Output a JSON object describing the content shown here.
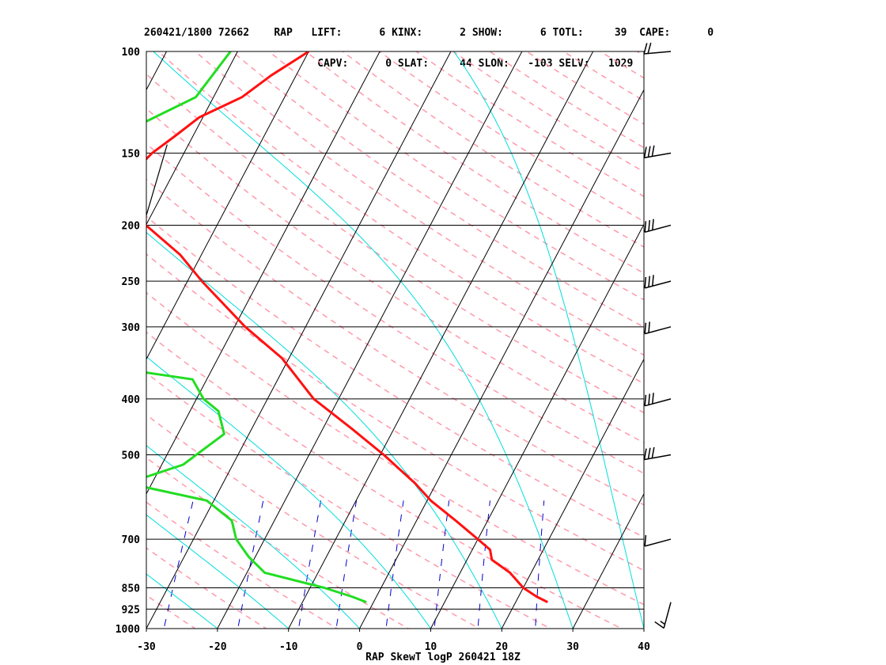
{
  "header": {
    "line1": "260421/1800 72662    RAP   LIFT:      6 KINX:      2 SHOW:      6 TOTL:     39  CAPE:      0",
    "line2": "                            CAPV:      0 SLAT:     44 SLON:   -103 SELV:   1029"
  },
  "chart_data": {
    "type": "line",
    "chart_kind": "skew-T log-P sounding",
    "title": "RAP SkewT logP 260421 18Z",
    "x_axis": {
      "label": "",
      "range": [
        -30,
        40
      ],
      "ticks": [
        -30,
        -20,
        -10,
        0,
        10,
        20,
        30,
        40
      ]
    },
    "y_axis": {
      "label": "",
      "scale": "log",
      "range": [
        1000,
        100
      ],
      "ticks": [
        100,
        150,
        200,
        250,
        300,
        400,
        500,
        700,
        850,
        925,
        1000
      ]
    },
    "skew_reference_pressure": 1000,
    "series": [
      {
        "role": "temperature",
        "color": "#ff1111",
        "points": [
          [
            100,
            -50.0
          ],
          [
            110,
            -53.5
          ],
          [
            120,
            -56.0
          ],
          [
            130,
            -60.5
          ],
          [
            140,
            -62.5
          ],
          [
            150,
            -64.5
          ],
          [
            160,
            -65.5
          ],
          [
            180,
            -64.0
          ],
          [
            200,
            -60.0
          ],
          [
            225,
            -53.0
          ],
          [
            250,
            -48.0
          ],
          [
            300,
            -38.5
          ],
          [
            340,
            -31.0
          ],
          [
            400,
            -23.5
          ],
          [
            450,
            -16.0
          ],
          [
            500,
            -9.5
          ],
          [
            560,
            -3.0
          ],
          [
            600,
            0.5
          ],
          [
            650,
            5.5
          ],
          [
            700,
            10.0
          ],
          [
            730,
            12.5
          ],
          [
            760,
            13.5
          ],
          [
            800,
            17.0
          ],
          [
            850,
            20.0
          ],
          [
            880,
            22.5
          ],
          [
            900,
            24.5
          ]
        ]
      },
      {
        "role": "dewpoint",
        "color": "#22dd22",
        "points": [
          [
            100,
            -61.0
          ],
          [
            120,
            -62.5
          ],
          [
            133,
            -68.0
          ],
          [
            140,
            -68.0
          ],
          [
            150,
            -70.0
          ],
          [
            160,
            -73.5
          ],
          [
            180,
            -71.5
          ],
          [
            200,
            -66.0
          ],
          [
            225,
            -63.0
          ],
          [
            245,
            -65.0
          ],
          [
            250,
            -69.0
          ],
          [
            275,
            -67.0
          ],
          [
            300,
            -63.5
          ],
          [
            330,
            -71.5
          ],
          [
            370,
            -42.0
          ],
          [
            400,
            -39.0
          ],
          [
            420,
            -36.0
          ],
          [
            460,
            -33.5
          ],
          [
            520,
            -37.0
          ],
          [
            560,
            -43.5
          ],
          [
            600,
            -31.0
          ],
          [
            650,
            -26.0
          ],
          [
            700,
            -24.0
          ],
          [
            750,
            -21.0
          ],
          [
            800,
            -17.5
          ],
          [
            850,
            -8.0
          ],
          [
            880,
            -3.5
          ],
          [
            900,
            -1.0
          ]
        ]
      },
      {
        "role": "parcel",
        "color": "#000000",
        "points": [
          [
            145,
            -63.0
          ],
          [
            300,
            -57.0
          ]
        ]
      }
    ],
    "background_lines": {
      "isotherms": {
        "color": "#000000",
        "start": -130,
        "end": 40,
        "step": 10
      },
      "dry_adiabats": {
        "color": "#ff99aa",
        "dashed": true,
        "thetas_K": [
          250,
          260,
          270,
          280,
          290,
          300,
          310,
          320,
          330,
          340,
          350,
          360,
          370,
          380,
          390,
          400,
          410,
          420,
          430,
          440,
          450,
          460,
          470,
          480,
          490,
          500,
          510,
          520
        ]
      },
      "moist_adiabats": {
        "color": "#00dddd",
        "start_temps_C": [
          -30,
          -20,
          -10,
          0,
          10,
          20,
          30,
          40
        ]
      },
      "mixing_ratio": {
        "color": "#0000cc",
        "dashed": true,
        "values_gkg": [
          0.4,
          1,
          2,
          3,
          5,
          8,
          12,
          20
        ]
      }
    },
    "wind_barbs": [
      {
        "pressure": 100,
        "direction_deg": 265,
        "speed_kt": 20
      },
      {
        "pressure": 150,
        "direction_deg": 260,
        "speed_kt": 30
      },
      {
        "pressure": 200,
        "direction_deg": 255,
        "speed_kt": 30
      },
      {
        "pressure": 250,
        "direction_deg": 255,
        "speed_kt": 30
      },
      {
        "pressure": 300,
        "direction_deg": 255,
        "speed_kt": 20
      },
      {
        "pressure": 400,
        "direction_deg": 255,
        "speed_kt": 30
      },
      {
        "pressure": 500,
        "direction_deg": 260,
        "speed_kt": 30
      },
      {
        "pressure": 700,
        "direction_deg": 255,
        "speed_kt": 10
      },
      {
        "pressure": 900,
        "direction_deg": 195,
        "speed_kt": 15
      }
    ]
  }
}
